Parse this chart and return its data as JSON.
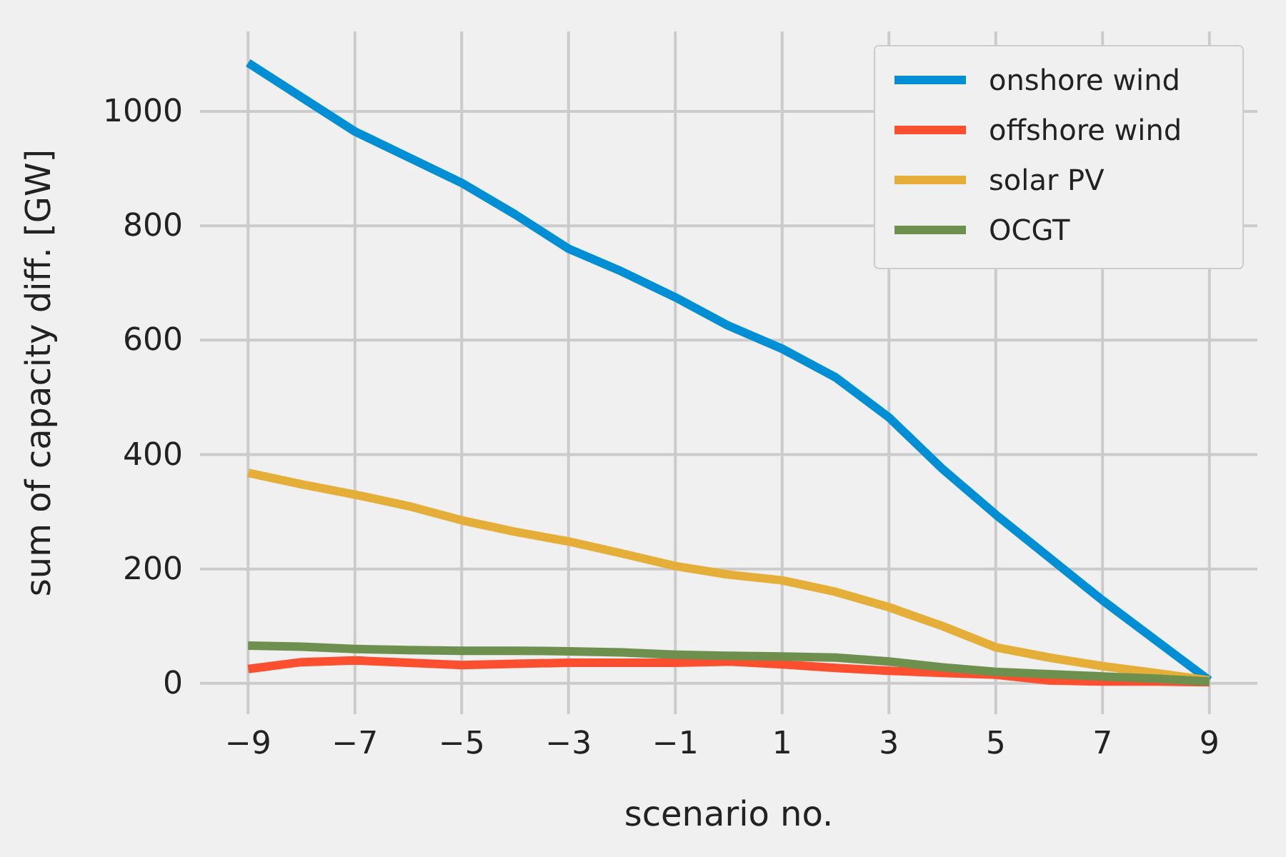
{
  "chart_data": {
    "type": "line",
    "xlabel": "scenario no.",
    "ylabel": "sum of capacity diff. [GW]",
    "x": [
      -9,
      -8,
      -7,
      -6,
      -5,
      -4,
      -3,
      -2,
      -1,
      0,
      1,
      2,
      3,
      4,
      5,
      6,
      7,
      8,
      9
    ],
    "series": [
      {
        "name": "onshore wind",
        "color": "#008fd5",
        "values": [
          1085,
          1025,
          965,
          920,
          875,
          820,
          760,
          720,
          675,
          625,
          585,
          535,
          465,
          375,
          295,
          220,
          145,
          75,
          5
        ]
      },
      {
        "name": "offshore wind",
        "color": "#fc4f30",
        "values": [
          25,
          37,
          40,
          36,
          32,
          34,
          36,
          36,
          36,
          38,
          33,
          27,
          22,
          18,
          15,
          5,
          3,
          3,
          2
        ]
      },
      {
        "name": "solar PV",
        "color": "#e5ae38",
        "values": [
          368,
          348,
          330,
          310,
          285,
          265,
          248,
          227,
          205,
          190,
          180,
          160,
          133,
          100,
          63,
          45,
          30,
          18,
          5
        ]
      },
      {
        "name": "OCGT",
        "color": "#6d904f",
        "values": [
          66,
          64,
          60,
          58,
          57,
          57,
          56,
          54,
          50,
          48,
          47,
          45,
          38,
          28,
          20,
          16,
          12,
          8,
          3
        ]
      }
    ],
    "xlim": [
      -9.9,
      9.9
    ],
    "ylim": [
      -54,
      1140
    ],
    "xticks": [
      -9,
      -7,
      -5,
      -3,
      -1,
      1,
      3,
      5,
      7,
      9
    ],
    "yticks": [
      0,
      200,
      400,
      600,
      800,
      1000
    ],
    "grid": true,
    "legend": "top right",
    "marker": "none",
    "line_style": "solid"
  }
}
